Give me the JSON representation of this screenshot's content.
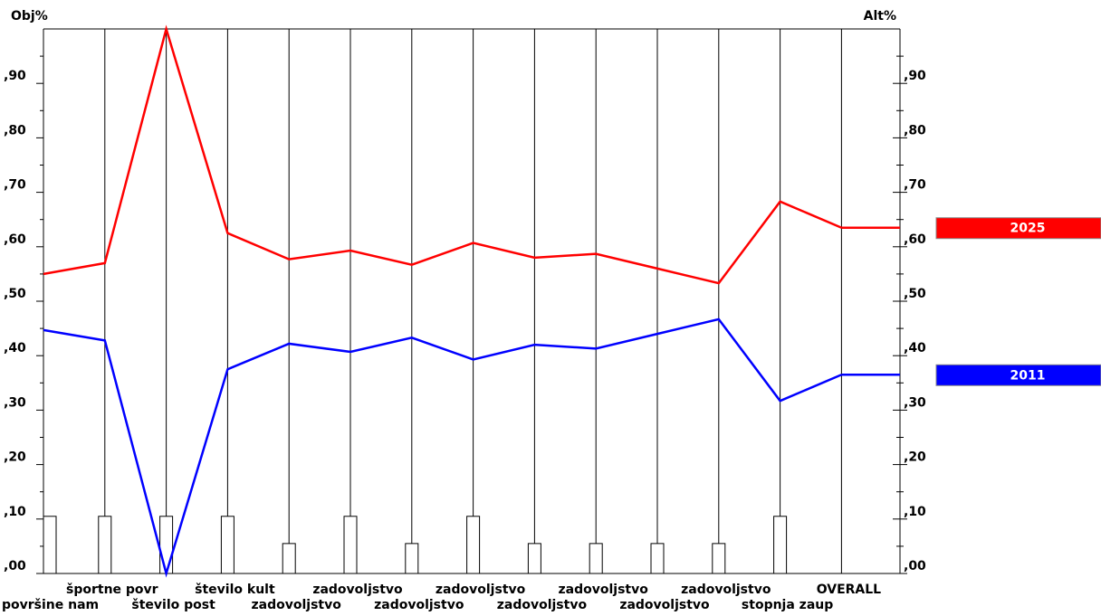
{
  "chart_data": {
    "type": "line",
    "y_label": "Obj%",
    "y2_label": "Alt%",
    "categories": [
      "površine nam",
      "športne povr",
      "število post",
      "število kult",
      "zadovoljstvo",
      "zadovoljstvo",
      "zadovoljstvo",
      "zadovoljstvo",
      "zadovoljstvo",
      "zadovoljstvo",
      "zadovoljstvo",
      "zadovoljstvo",
      "stopnja zaup",
      "OVERALL"
    ],
    "series": [
      {
        "name": "2025",
        "color": "#ff0000",
        "values": [
          0.55,
          0.57,
          1.0,
          0.625,
          0.577,
          0.593,
          0.567,
          0.607,
          0.58,
          0.587,
          0.56,
          0.533,
          0.683,
          0.635
        ]
      },
      {
        "name": "2011",
        "color": "#0000ff",
        "values": [
          0.447,
          0.428,
          0.0,
          0.375,
          0.422,
          0.407,
          0.433,
          0.393,
          0.42,
          0.413,
          0.44,
          0.467,
          0.317,
          0.365
        ]
      }
    ],
    "weights": [
      0.105,
      0.105,
      0.105,
      0.105,
      0.055,
      0.105,
      0.055,
      0.105,
      0.055,
      0.055,
      0.055,
      0.055,
      0.105,
      null
    ],
    "ylim": [
      0,
      1
    ],
    "y2lim": [
      0,
      1
    ],
    "yticks": [
      {
        "value": 0,
        "label": ",00"
      },
      {
        "value": 0.1,
        "label": ",10"
      },
      {
        "value": 0.2,
        "label": ",20"
      },
      {
        "value": 0.3,
        "label": ",30"
      },
      {
        "value": 0.4,
        "label": ",40"
      },
      {
        "value": 0.5,
        "label": ",50"
      },
      {
        "value": 0.6,
        "label": ",60"
      },
      {
        "value": 0.7,
        "label": ",70"
      },
      {
        "value": 0.8,
        "label": ",80"
      },
      {
        "value": 0.9,
        "label": ",90"
      }
    ],
    "y2ticks": [
      {
        "value": 0,
        "label": ",00"
      },
      {
        "value": 0.1,
        "label": ",10"
      },
      {
        "value": 0.2,
        "label": ",20"
      },
      {
        "value": 0.3,
        "label": ",30"
      },
      {
        "value": 0.4,
        "label": ",40"
      },
      {
        "value": 0.5,
        "label": ",50"
      },
      {
        "value": 0.6,
        "label": ",60"
      },
      {
        "value": 0.7,
        "label": ",70"
      },
      {
        "value": 0.8,
        "label": ",80"
      },
      {
        "value": 0.9,
        "label": ",90"
      }
    ],
    "minor_yticks": [
      0.05,
      0.15,
      0.25,
      0.35,
      0.45,
      0.55,
      0.65,
      0.75,
      0.85,
      0.95
    ]
  }
}
